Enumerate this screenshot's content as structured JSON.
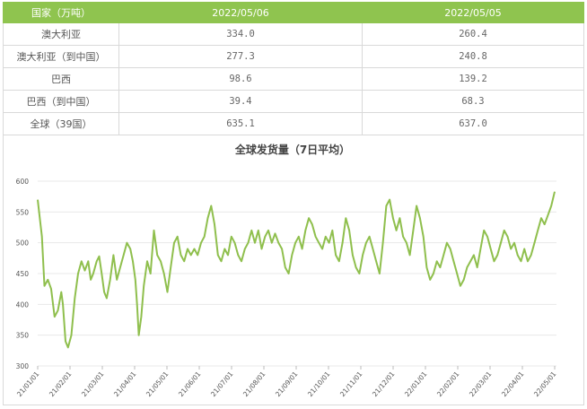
{
  "table": {
    "headers": [
      "国家（万吨）",
      "2022/05/06",
      "2022/05/05"
    ],
    "rows": [
      {
        "name": "澳大利亚",
        "v1": "334.0",
        "v2": "260.4"
      },
      {
        "name": "澳大利亚（到中国）",
        "v1": "277.3",
        "v2": "240.8"
      },
      {
        "name": "巴西",
        "v1": "98.6",
        "v2": "139.2"
      },
      {
        "name": "巴西（到中国）",
        "v1": "39.4",
        "v2": "68.3"
      },
      {
        "name": "全球（39国）",
        "v1": "635.1",
        "v2": "637.0"
      }
    ]
  },
  "colors": {
    "header_bg": "#8fc44f",
    "line": "#8fbf4d",
    "grid": "#e8e8e8"
  },
  "chart_data": {
    "type": "line",
    "title": "全球发货量（7日平均）",
    "ylim": [
      300,
      600
    ],
    "yticks": [
      "300",
      "350",
      "400",
      "450",
      "500",
      "550",
      "600"
    ],
    "xticks": [
      "21/01/01",
      "21/02/01",
      "21/03/01",
      "21/04/01",
      "21/05/01",
      "21/06/01",
      "21/07/01",
      "21/08/01",
      "21/09/01",
      "21/10/01",
      "21/11/01",
      "21/12/01",
      "22/01/01",
      "22/02/01",
      "22/03/01",
      "22/04/01",
      "22/05/01"
    ],
    "grid": "horizontal",
    "series": [
      {
        "values": [
          [
            0,
            570
          ],
          [
            5,
            510
          ],
          [
            8,
            430
          ],
          [
            12,
            440
          ],
          [
            16,
            425
          ],
          [
            20,
            380
          ],
          [
            24,
            390
          ],
          [
            28,
            420
          ],
          [
            30,
            400
          ],
          [
            33,
            340
          ],
          [
            36,
            330
          ],
          [
            40,
            350
          ],
          [
            44,
            410
          ],
          [
            48,
            450
          ],
          [
            52,
            470
          ],
          [
            56,
            455
          ],
          [
            60,
            470
          ],
          [
            63,
            440
          ],
          [
            66,
            450
          ],
          [
            70,
            470
          ],
          [
            73,
            478
          ],
          [
            76,
            450
          ],
          [
            79,
            420
          ],
          [
            82,
            410
          ],
          [
            86,
            440
          ],
          [
            90,
            480
          ],
          [
            94,
            440
          ],
          [
            98,
            460
          ],
          [
            102,
            480
          ],
          [
            106,
            500
          ],
          [
            110,
            490
          ],
          [
            113,
            470
          ],
          [
            116,
            440
          ],
          [
            118,
            400
          ],
          [
            120,
            350
          ],
          [
            123,
            380
          ],
          [
            126,
            430
          ],
          [
            130,
            470
          ],
          [
            134,
            450
          ],
          [
            138,
            520
          ],
          [
            142,
            480
          ],
          [
            146,
            470
          ],
          [
            150,
            450
          ],
          [
            154,
            420
          ],
          [
            158,
            460
          ],
          [
            162,
            500
          ],
          [
            166,
            510
          ],
          [
            170,
            480
          ],
          [
            174,
            470
          ],
          [
            178,
            490
          ],
          [
            182,
            480
          ],
          [
            186,
            490
          ],
          [
            190,
            480
          ],
          [
            194,
            500
          ],
          [
            198,
            510
          ],
          [
            202,
            540
          ],
          [
            206,
            560
          ],
          [
            210,
            530
          ],
          [
            214,
            480
          ],
          [
            218,
            470
          ],
          [
            222,
            490
          ],
          [
            226,
            480
          ],
          [
            230,
            510
          ],
          [
            234,
            500
          ],
          [
            238,
            480
          ],
          [
            242,
            470
          ],
          [
            246,
            490
          ],
          [
            250,
            500
          ],
          [
            254,
            520
          ],
          [
            258,
            500
          ],
          [
            262,
            520
          ],
          [
            266,
            490
          ],
          [
            270,
            510
          ],
          [
            274,
            520
          ],
          [
            278,
            500
          ],
          [
            282,
            515
          ],
          [
            286,
            500
          ],
          [
            290,
            490
          ],
          [
            294,
            460
          ],
          [
            298,
            450
          ],
          [
            302,
            480
          ],
          [
            306,
            500
          ],
          [
            310,
            510
          ],
          [
            314,
            490
          ],
          [
            318,
            520
          ],
          [
            322,
            540
          ],
          [
            326,
            530
          ],
          [
            330,
            510
          ],
          [
            334,
            500
          ],
          [
            338,
            490
          ],
          [
            342,
            510
          ],
          [
            346,
            500
          ],
          [
            350,
            520
          ],
          [
            354,
            480
          ],
          [
            358,
            470
          ],
          [
            362,
            500
          ],
          [
            366,
            540
          ],
          [
            370,
            520
          ],
          [
            374,
            480
          ],
          [
            378,
            460
          ],
          [
            382,
            450
          ],
          [
            386,
            480
          ],
          [
            390,
            500
          ],
          [
            394,
            510
          ],
          [
            398,
            490
          ],
          [
            402,
            470
          ],
          [
            406,
            450
          ],
          [
            410,
            500
          ],
          [
            414,
            560
          ],
          [
            418,
            570
          ],
          [
            422,
            540
          ],
          [
            426,
            520
          ],
          [
            430,
            540
          ],
          [
            434,
            510
          ],
          [
            438,
            500
          ],
          [
            442,
            480
          ],
          [
            446,
            520
          ],
          [
            450,
            560
          ],
          [
            454,
            540
          ],
          [
            458,
            510
          ],
          [
            462,
            460
          ],
          [
            466,
            440
          ],
          [
            470,
            450
          ],
          [
            474,
            470
          ],
          [
            478,
            460
          ],
          [
            482,
            480
          ],
          [
            486,
            500
          ],
          [
            490,
            490
          ],
          [
            494,
            470
          ],
          [
            498,
            450
          ],
          [
            502,
            430
          ],
          [
            506,
            440
          ],
          [
            510,
            460
          ],
          [
            514,
            470
          ],
          [
            518,
            480
          ],
          [
            522,
            460
          ],
          [
            526,
            490
          ],
          [
            530,
            520
          ],
          [
            534,
            510
          ],
          [
            538,
            490
          ],
          [
            542,
            470
          ],
          [
            546,
            480
          ],
          [
            550,
            500
          ],
          [
            554,
            520
          ],
          [
            558,
            510
          ],
          [
            562,
            490
          ],
          [
            566,
            500
          ],
          [
            570,
            480
          ],
          [
            574,
            470
          ],
          [
            578,
            490
          ],
          [
            582,
            470
          ],
          [
            586,
            480
          ],
          [
            590,
            500
          ],
          [
            594,
            520
          ],
          [
            598,
            540
          ],
          [
            602,
            530
          ],
          [
            606,
            545
          ],
          [
            610,
            560
          ],
          [
            614,
            583
          ]
        ]
      }
    ]
  }
}
